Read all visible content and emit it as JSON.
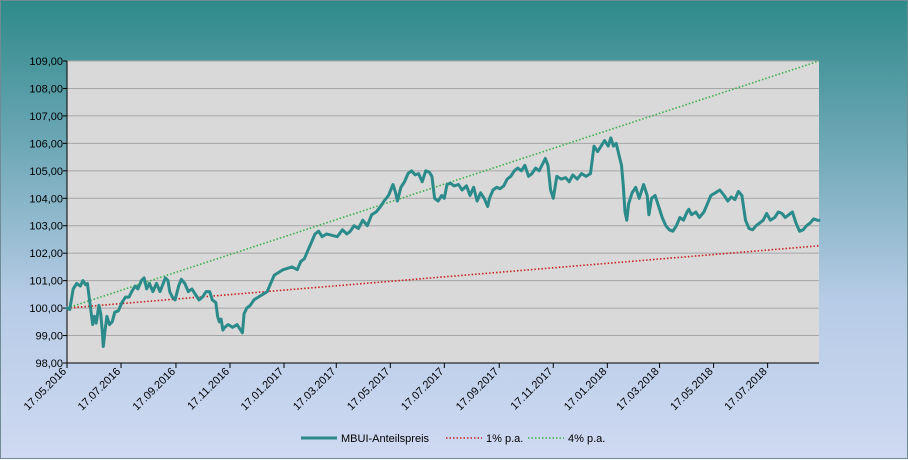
{
  "chart_data": {
    "type": "line",
    "title": "",
    "xlabel": "",
    "ylabel": "",
    "ylim": [
      98.0,
      109.0
    ],
    "y_ticks": [
      "98,00",
      "99,00",
      "100,00",
      "101,00",
      "102,00",
      "103,00",
      "104,00",
      "105,00",
      "106,00",
      "107,00",
      "108,00",
      "109,00"
    ],
    "x_ticks": [
      "17.05.2016",
      "17.07.2016",
      "17.09.2016",
      "17.11.2016",
      "17.01.2017",
      "17.03.2017",
      "17.05.2017",
      "17.07.2017",
      "17.09.2017",
      "17.11.2017",
      "17.01.2018",
      "17.03.2018",
      "17.05.2018",
      "17.07.2018"
    ],
    "x_range": [
      "2016-05-17",
      "2018-09-13"
    ],
    "grid": true,
    "legend_position": "bottom",
    "colors": {
      "plot_background": "#d9d9d9",
      "grid": "#a6a6a6",
      "price": "#2b8a8a",
      "one_percent": "#cc1f1f",
      "four_percent": "#3cb04a"
    },
    "series": [
      {
        "name": "MBUI-Anteilspreis",
        "style": "solid",
        "points": [
          [
            "2016-05-17",
            100.0
          ],
          [
            "2016-05-20",
            99.95
          ],
          [
            "2016-05-24",
            100.7
          ],
          [
            "2016-05-28",
            100.9
          ],
          [
            "2016-06-01",
            100.8
          ],
          [
            "2016-06-04",
            101.0
          ],
          [
            "2016-06-07",
            100.85
          ],
          [
            "2016-06-09",
            100.9
          ],
          [
            "2016-06-13",
            99.9
          ],
          [
            "2016-06-15",
            99.4
          ],
          [
            "2016-06-17",
            99.7
          ],
          [
            "2016-06-19",
            99.45
          ],
          [
            "2016-06-22",
            100.1
          ],
          [
            "2016-06-24",
            99.8
          ],
          [
            "2016-06-26",
            99.1
          ],
          [
            "2016-06-27",
            98.6
          ],
          [
            "2016-06-29",
            99.2
          ],
          [
            "2016-07-01",
            99.7
          ],
          [
            "2016-07-04",
            99.4
          ],
          [
            "2016-07-07",
            99.5
          ],
          [
            "2016-07-10",
            99.85
          ],
          [
            "2016-07-14",
            99.9
          ],
          [
            "2016-07-18",
            100.2
          ],
          [
            "2016-07-22",
            100.4
          ],
          [
            "2016-07-26",
            100.4
          ],
          [
            "2016-07-29",
            100.6
          ],
          [
            "2016-08-02",
            100.8
          ],
          [
            "2016-08-05",
            100.7
          ],
          [
            "2016-08-09",
            101.0
          ],
          [
            "2016-08-12",
            101.1
          ],
          [
            "2016-08-15",
            100.7
          ],
          [
            "2016-08-18",
            100.9
          ],
          [
            "2016-08-22",
            100.6
          ],
          [
            "2016-08-26",
            100.9
          ],
          [
            "2016-08-30",
            100.6
          ],
          [
            "2016-09-02",
            100.85
          ],
          [
            "2016-09-05",
            101.1
          ],
          [
            "2016-09-08",
            101.0
          ],
          [
            "2016-09-10",
            100.6
          ],
          [
            "2016-09-13",
            100.4
          ],
          [
            "2016-09-16",
            100.3
          ],
          [
            "2016-09-20",
            100.8
          ],
          [
            "2016-09-23",
            101.05
          ],
          [
            "2016-09-27",
            100.9
          ],
          [
            "2016-10-01",
            100.6
          ],
          [
            "2016-10-05",
            100.7
          ],
          [
            "2016-10-09",
            100.5
          ],
          [
            "2016-10-13",
            100.3
          ],
          [
            "2016-10-17",
            100.4
          ],
          [
            "2016-10-21",
            100.6
          ],
          [
            "2016-10-25",
            100.6
          ],
          [
            "2016-10-28",
            100.3
          ],
          [
            "2016-11-01",
            100.2
          ],
          [
            "2016-11-03",
            99.7
          ],
          [
            "2016-11-05",
            99.5
          ],
          [
            "2016-11-07",
            99.6
          ],
          [
            "2016-11-09",
            99.2
          ],
          [
            "2016-11-11",
            99.3
          ],
          [
            "2016-11-15",
            99.4
          ],
          [
            "2016-11-20",
            99.3
          ],
          [
            "2016-11-25",
            99.4
          ],
          [
            "2016-11-28",
            99.25
          ],
          [
            "2016-12-01",
            99.1
          ],
          [
            "2016-12-03",
            99.8
          ],
          [
            "2016-12-06",
            100.0
          ],
          [
            "2016-12-10",
            100.1
          ],
          [
            "2016-12-14",
            100.3
          ],
          [
            "2016-12-19",
            100.4
          ],
          [
            "2016-12-24",
            100.5
          ],
          [
            "2016-12-29",
            100.6
          ],
          [
            "2017-01-02",
            100.9
          ],
          [
            "2017-01-06",
            101.2
          ],
          [
            "2017-01-11",
            101.3
          ],
          [
            "2017-01-16",
            101.4
          ],
          [
            "2017-01-21",
            101.45
          ],
          [
            "2017-01-26",
            101.5
          ],
          [
            "2017-02-01",
            101.4
          ],
          [
            "2017-02-05",
            101.7
          ],
          [
            "2017-02-09",
            101.8
          ],
          [
            "2017-02-13",
            102.1
          ],
          [
            "2017-02-17",
            102.4
          ],
          [
            "2017-02-21",
            102.7
          ],
          [
            "2017-02-25",
            102.8
          ],
          [
            "2017-03-01",
            102.6
          ],
          [
            "2017-03-06",
            102.7
          ],
          [
            "2017-03-12",
            102.65
          ],
          [
            "2017-03-18",
            102.6
          ],
          [
            "2017-03-24",
            102.85
          ],
          [
            "2017-03-29",
            102.7
          ],
          [
            "2017-04-02",
            102.8
          ],
          [
            "2017-04-06",
            103.0
          ],
          [
            "2017-04-11",
            102.9
          ],
          [
            "2017-04-16",
            103.2
          ],
          [
            "2017-04-21",
            103.0
          ],
          [
            "2017-04-26",
            103.4
          ],
          [
            "2017-05-01",
            103.5
          ],
          [
            "2017-05-06",
            103.7
          ],
          [
            "2017-05-10",
            103.9
          ],
          [
            "2017-05-15",
            104.1
          ],
          [
            "2017-05-20",
            104.5
          ],
          [
            "2017-05-23",
            104.2
          ],
          [
            "2017-05-25",
            103.9
          ],
          [
            "2017-05-29",
            104.4
          ],
          [
            "2017-06-02",
            104.6
          ],
          [
            "2017-06-06",
            104.9
          ],
          [
            "2017-06-10",
            105.0
          ],
          [
            "2017-06-14",
            104.85
          ],
          [
            "2017-06-18",
            104.9
          ],
          [
            "2017-06-22",
            104.6
          ],
          [
            "2017-06-26",
            105.0
          ],
          [
            "2017-06-30",
            104.95
          ],
          [
            "2017-07-03",
            104.8
          ],
          [
            "2017-07-06",
            104.0
          ],
          [
            "2017-07-10",
            103.9
          ],
          [
            "2017-07-14",
            104.1
          ],
          [
            "2017-07-17",
            104.0
          ],
          [
            "2017-07-20",
            104.5
          ],
          [
            "2017-07-24",
            104.55
          ],
          [
            "2017-07-28",
            104.45
          ],
          [
            "2017-08-02",
            104.5
          ],
          [
            "2017-08-06",
            104.3
          ],
          [
            "2017-08-11",
            104.45
          ],
          [
            "2017-08-15",
            104.1
          ],
          [
            "2017-08-19",
            104.4
          ],
          [
            "2017-08-23",
            103.9
          ],
          [
            "2017-08-27",
            104.2
          ],
          [
            "2017-08-31",
            104.0
          ],
          [
            "2017-09-04",
            103.7
          ],
          [
            "2017-09-06",
            104.0
          ],
          [
            "2017-09-10",
            104.3
          ],
          [
            "2017-09-14",
            104.4
          ],
          [
            "2017-09-18",
            104.35
          ],
          [
            "2017-09-22",
            104.45
          ],
          [
            "2017-09-26",
            104.7
          ],
          [
            "2017-09-30",
            104.8
          ],
          [
            "2017-10-04",
            105.0
          ],
          [
            "2017-10-08",
            105.1
          ],
          [
            "2017-10-12",
            105.0
          ],
          [
            "2017-10-16",
            105.2
          ],
          [
            "2017-10-20",
            104.8
          ],
          [
            "2017-10-24",
            104.9
          ],
          [
            "2017-10-28",
            105.1
          ],
          [
            "2017-11-01",
            105.0
          ],
          [
            "2017-11-05",
            105.25
          ],
          [
            "2017-11-08",
            105.45
          ],
          [
            "2017-11-11",
            105.2
          ],
          [
            "2017-11-14",
            104.3
          ],
          [
            "2017-11-17",
            104.0
          ],
          [
            "2017-11-21",
            104.8
          ],
          [
            "2017-11-26",
            104.7
          ],
          [
            "2017-12-01",
            104.75
          ],
          [
            "2017-12-05",
            104.6
          ],
          [
            "2017-12-09",
            104.85
          ],
          [
            "2017-12-14",
            104.7
          ],
          [
            "2017-12-19",
            104.9
          ],
          [
            "2017-12-24",
            104.8
          ],
          [
            "2017-12-29",
            104.9
          ],
          [
            "2018-01-02",
            105.9
          ],
          [
            "2018-01-06",
            105.7
          ],
          [
            "2018-01-10",
            105.9
          ],
          [
            "2018-01-14",
            106.1
          ],
          [
            "2018-01-18",
            105.9
          ],
          [
            "2018-01-21",
            106.2
          ],
          [
            "2018-01-24",
            105.9
          ],
          [
            "2018-01-27",
            106.0
          ],
          [
            "2018-01-30",
            105.6
          ],
          [
            "2018-02-02",
            105.2
          ],
          [
            "2018-02-04",
            104.5
          ],
          [
            "2018-02-06",
            103.5
          ],
          [
            "2018-02-08",
            103.2
          ],
          [
            "2018-02-10",
            103.8
          ],
          [
            "2018-02-14",
            104.2
          ],
          [
            "2018-02-18",
            104.4
          ],
          [
            "2018-02-22",
            104.0
          ],
          [
            "2018-02-27",
            104.5
          ],
          [
            "2018-03-03",
            104.1
          ],
          [
            "2018-03-05",
            103.4
          ],
          [
            "2018-03-08",
            104.0
          ],
          [
            "2018-03-12",
            104.1
          ],
          [
            "2018-03-16",
            103.7
          ],
          [
            "2018-03-20",
            103.3
          ],
          [
            "2018-03-24",
            103.0
          ],
          [
            "2018-03-28",
            102.85
          ],
          [
            "2018-04-01",
            102.8
          ],
          [
            "2018-04-05",
            103.0
          ],
          [
            "2018-04-09",
            103.3
          ],
          [
            "2018-04-13",
            103.2
          ],
          [
            "2018-04-17",
            103.5
          ],
          [
            "2018-04-19",
            103.6
          ],
          [
            "2018-04-22",
            103.4
          ],
          [
            "2018-04-27",
            103.5
          ],
          [
            "2018-05-01",
            103.3
          ],
          [
            "2018-05-06",
            103.5
          ],
          [
            "2018-05-10",
            103.8
          ],
          [
            "2018-05-14",
            104.1
          ],
          [
            "2018-05-19",
            104.2
          ],
          [
            "2018-05-24",
            104.3
          ],
          [
            "2018-05-29",
            104.1
          ],
          [
            "2018-06-02",
            103.9
          ],
          [
            "2018-06-06",
            104.05
          ],
          [
            "2018-06-10",
            103.95
          ],
          [
            "2018-06-14",
            104.25
          ],
          [
            "2018-06-18",
            104.1
          ],
          [
            "2018-06-22",
            103.2
          ],
          [
            "2018-06-26",
            102.9
          ],
          [
            "2018-06-30",
            102.85
          ],
          [
            "2018-07-04",
            103.0
          ],
          [
            "2018-07-08",
            103.1
          ],
          [
            "2018-07-12",
            103.2
          ],
          [
            "2018-07-16",
            103.45
          ],
          [
            "2018-07-20",
            103.2
          ],
          [
            "2018-07-25",
            103.3
          ],
          [
            "2018-07-29",
            103.5
          ],
          [
            "2018-08-02",
            103.45
          ],
          [
            "2018-08-06",
            103.3
          ],
          [
            "2018-08-10",
            103.4
          ],
          [
            "2018-08-14",
            103.5
          ],
          [
            "2018-08-18",
            103.1
          ],
          [
            "2018-08-22",
            102.8
          ],
          [
            "2018-08-26",
            102.85
          ],
          [
            "2018-08-30",
            103.0
          ],
          [
            "2018-09-03",
            103.1
          ],
          [
            "2018-09-07",
            103.25
          ],
          [
            "2018-09-11",
            103.2
          ],
          [
            "2018-09-13",
            103.2
          ]
        ]
      },
      {
        "name": "1% p.a.",
        "style": "dotted",
        "points": [
          [
            "2016-05-17",
            100.0
          ],
          [
            "2018-09-13",
            102.27
          ]
        ]
      },
      {
        "name": "4% p.a.",
        "style": "dotted",
        "points": [
          [
            "2016-05-17",
            100.0
          ],
          [
            "2018-09-13",
            109.0
          ]
        ]
      }
    ]
  }
}
